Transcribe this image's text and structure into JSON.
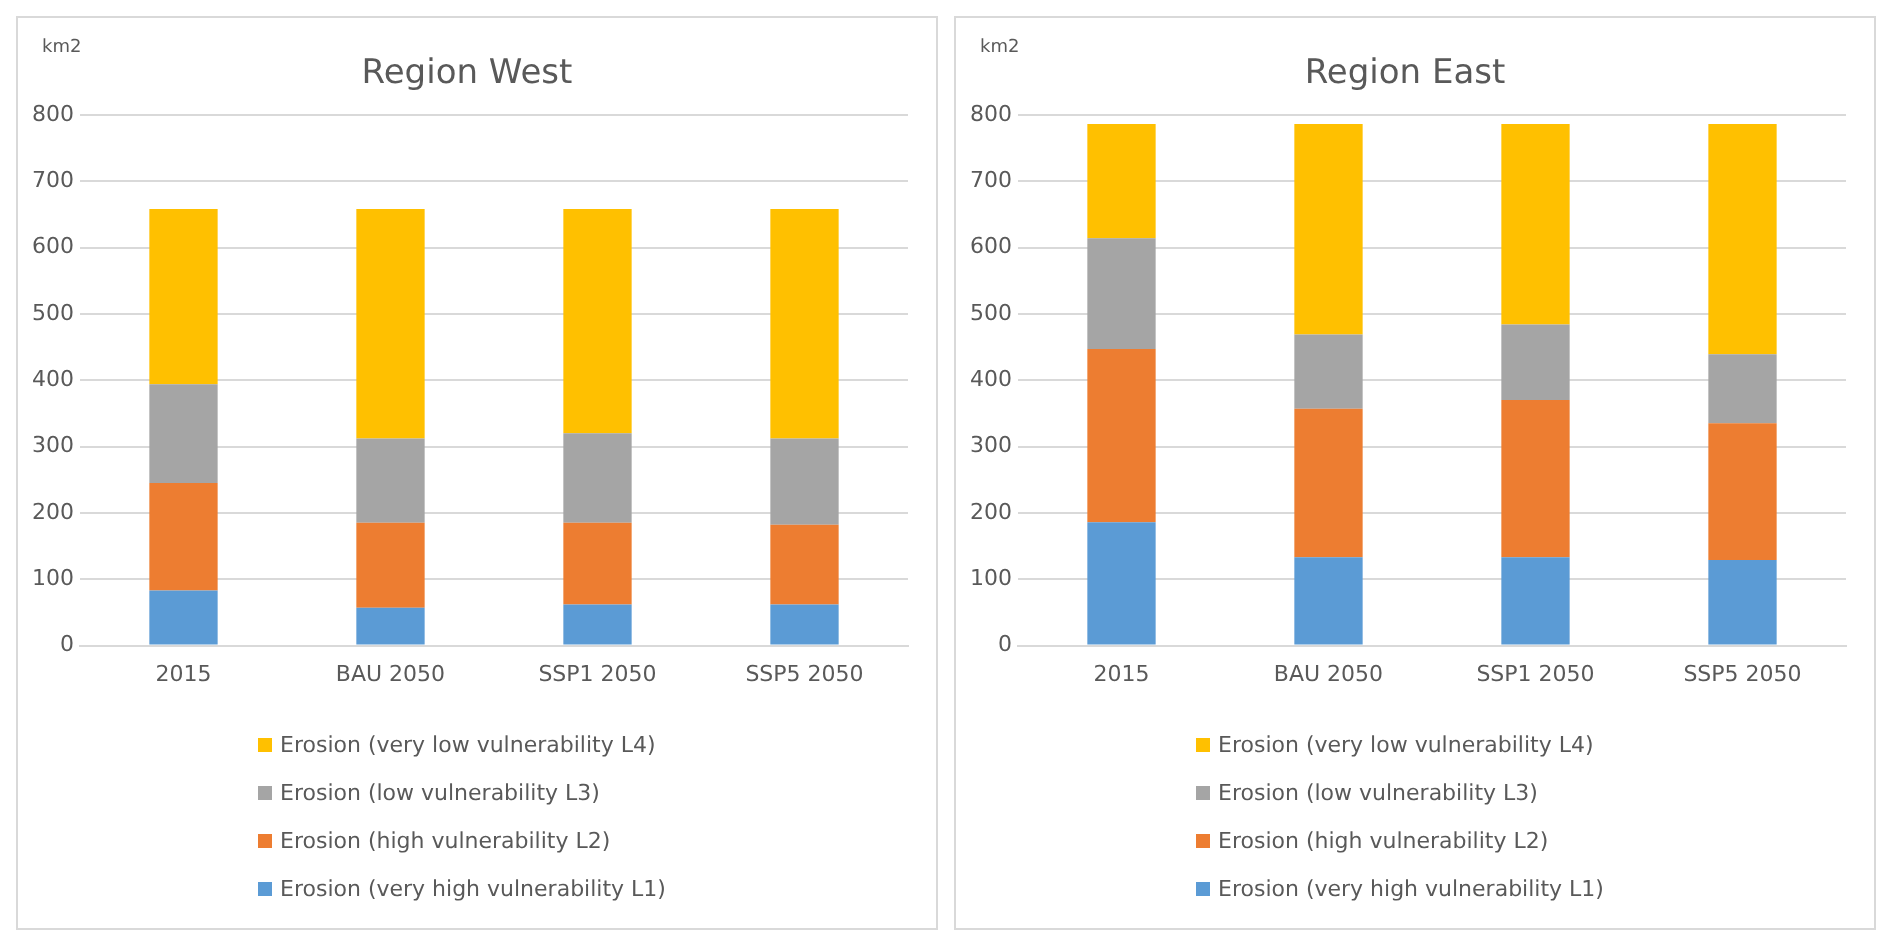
{
  "chart_data": [
    {
      "type": "bar",
      "title": "Region West",
      "ylabel": "km2",
      "categories": [
        "2015",
        "BAU 2050",
        "SSP1 2050",
        "SSP5 2050"
      ],
      "stacked": true,
      "ylim": [
        0,
        800
      ],
      "yticks": [
        0,
        100,
        200,
        300,
        400,
        500,
        600,
        700,
        800
      ],
      "grid": "y",
      "legend": "bottom",
      "series": [
        {
          "name": "Erosion (very high vulnerability L1)",
          "color": "#5b9bd5",
          "values": [
            83,
            57,
            62,
            62
          ]
        },
        {
          "name": "Erosion (high vulnerability L2)",
          "color": "#ed7d31",
          "values": [
            162,
            128,
            123,
            120
          ]
        },
        {
          "name": "Erosion (low vulnerability L3)",
          "color": "#a5a5a5",
          "values": [
            149,
            127,
            135,
            130
          ]
        },
        {
          "name": "Erosion (very low vulnerability L4)",
          "color": "#ffc000",
          "values": [
            264,
            346,
            338,
            346
          ]
        }
      ]
    },
    {
      "type": "bar",
      "title": "Region East",
      "ylabel": "km2",
      "categories": [
        "2015",
        "BAU 2050",
        "SSP1 2050",
        "SSP5 2050"
      ],
      "stacked": true,
      "ylim": [
        0,
        800
      ],
      "yticks": [
        0,
        100,
        200,
        300,
        400,
        500,
        600,
        700,
        800
      ],
      "grid": "y",
      "legend": "bottom",
      "series": [
        {
          "name": "Erosion (very high vulnerability L1)",
          "color": "#5b9bd5",
          "values": [
            186,
            133,
            133,
            129
          ]
        },
        {
          "name": "Erosion (high vulnerability L2)",
          "color": "#ed7d31",
          "values": [
            261,
            224,
            237,
            206
          ]
        },
        {
          "name": "Erosion (low vulnerability L3)",
          "color": "#a5a5a5",
          "values": [
            167,
            112,
            114,
            104
          ]
        },
        {
          "name": "Erosion (very low vulnerability L4)",
          "color": "#ffc000",
          "values": [
            172,
            317,
            302,
            347
          ]
        }
      ]
    }
  ]
}
